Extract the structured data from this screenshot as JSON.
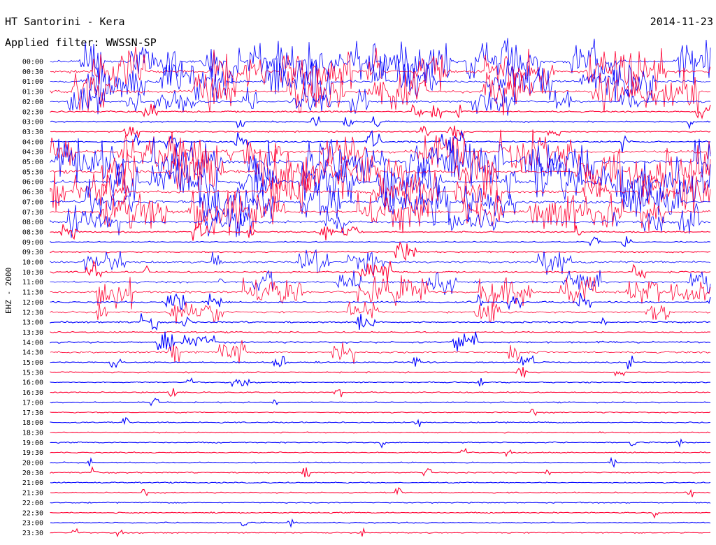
{
  "header": {
    "station": "HT Santorini - Kera",
    "date": "2014-11-23",
    "filter_label": "Applied filter:",
    "filter_name": "WWSSN-SP",
    "channel": "EHZ - 2000"
  },
  "colors": {
    "odd_trace": "#0000ff",
    "even_trace": "#ff0033",
    "background": "#ffffff",
    "text": "#000000"
  },
  "chart_data": {
    "type": "line",
    "title": "HT Santorini - Kera",
    "subtitle": "Applied filter: WWSSN-SP",
    "ylabel": "EHZ - 2000",
    "xlabel": "",
    "trace_interval_minutes": 30,
    "grid": false,
    "legend": "none",
    "rows": [
      {
        "label": "00:00",
        "activity": 0.85
      },
      {
        "label": "00:30",
        "activity": 0.9
      },
      {
        "label": "01:00",
        "activity": 0.85
      },
      {
        "label": "01:30",
        "activity": 0.8
      },
      {
        "label": "02:00",
        "activity": 0.45
      },
      {
        "label": "02:30",
        "activity": 0.25
      },
      {
        "label": "03:00",
        "activity": 0.1
      },
      {
        "label": "03:30",
        "activity": 0.15
      },
      {
        "label": "04:00",
        "activity": 0.3
      },
      {
        "label": "04:30",
        "activity": 0.75
      },
      {
        "label": "05:00",
        "activity": 0.9
      },
      {
        "label": "05:30",
        "activity": 0.95
      },
      {
        "label": "06:00",
        "activity": 0.95
      },
      {
        "label": "06:30",
        "activity": 0.85
      },
      {
        "label": "07:00",
        "activity": 0.85
      },
      {
        "label": "07:30",
        "activity": 0.75
      },
      {
        "label": "08:00",
        "activity": 0.55
      },
      {
        "label": "08:30",
        "activity": 0.2
      },
      {
        "label": "09:00",
        "activity": 0.1
      },
      {
        "label": "09:30",
        "activity": 0.25
      },
      {
        "label": "10:00",
        "activity": 0.45
      },
      {
        "label": "10:30",
        "activity": 0.3
      },
      {
        "label": "11:00",
        "activity": 0.4
      },
      {
        "label": "11:30",
        "activity": 0.5
      },
      {
        "label": "12:00",
        "activity": 0.3
      },
      {
        "label": "12:30",
        "activity": 0.35
      },
      {
        "label": "13:00",
        "activity": 0.2
      },
      {
        "label": "13:30",
        "activity": 0.15
      },
      {
        "label": "14:00",
        "activity": 0.3
      },
      {
        "label": "14:30",
        "activity": 0.35
      },
      {
        "label": "15:00",
        "activity": 0.15
      },
      {
        "label": "15:30",
        "activity": 0.1
      },
      {
        "label": "16:00",
        "activity": 0.06
      },
      {
        "label": "16:30",
        "activity": 0.06
      },
      {
        "label": "17:00",
        "activity": 0.05
      },
      {
        "label": "17:30",
        "activity": 0.04
      },
      {
        "label": "18:00",
        "activity": 0.04
      },
      {
        "label": "18:30",
        "activity": 0.04
      },
      {
        "label": "19:00",
        "activity": 0.04
      },
      {
        "label": "19:30",
        "activity": 0.04
      },
      {
        "label": "20:00",
        "activity": 0.04
      },
      {
        "label": "20:30",
        "activity": 0.05
      },
      {
        "label": "21:00",
        "activity": 0.04
      },
      {
        "label": "21:30",
        "activity": 0.04
      },
      {
        "label": "22:00",
        "activity": 0.04
      },
      {
        "label": "22:30",
        "activity": 0.04
      },
      {
        "label": "23:00",
        "activity": 0.04
      },
      {
        "label": "23:30",
        "activity": 0.04
      }
    ]
  }
}
